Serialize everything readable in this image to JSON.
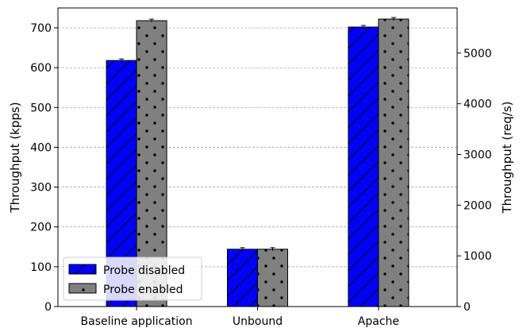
{
  "chart_data": {
    "type": "bar",
    "title": "",
    "categories": [
      "Baseline application",
      "Unbound",
      "Apache"
    ],
    "series": [
      {
        "name": "Probe disabled",
        "color": "#0000ff",
        "hatch": "diagonal",
        "values": [
          618,
          144,
          702
        ]
      },
      {
        "name": "Probe enabled",
        "color": "#808080",
        "hatch": "dots",
        "values": [
          718,
          144,
          722
        ]
      }
    ],
    "left_axis": {
      "label": "Throughput (kpps)",
      "ylim": [
        0,
        750
      ],
      "ticks": [
        0,
        100,
        200,
        300,
        400,
        500,
        600,
        700
      ]
    },
    "right_axis": {
      "label": "Throughput (req/s)",
      "ylim": [
        0,
        5890
      ],
      "ticks": [
        0,
        1000,
        2000,
        3000,
        4000,
        5000
      ]
    },
    "grid": true,
    "legend_position": "lower-left"
  }
}
